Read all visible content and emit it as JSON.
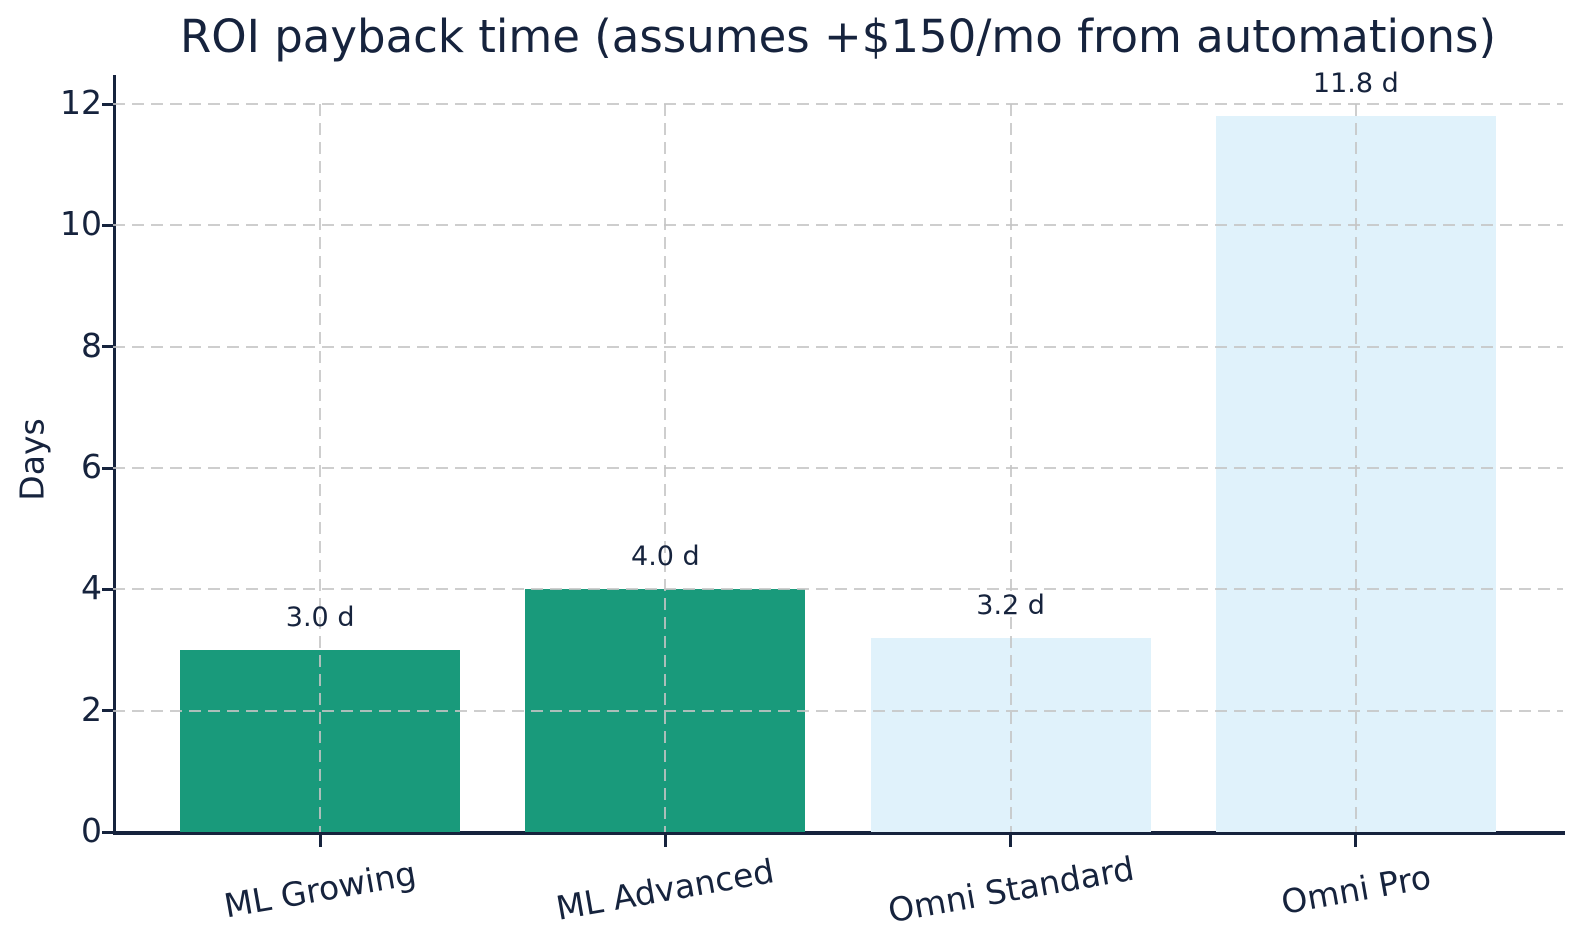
{
  "chart_data": {
    "type": "bar",
    "title": "ROI payback time (assumes +$150/mo from automations)",
    "xlabel": "",
    "ylabel": "Days",
    "categories": [
      "ML Growing",
      "ML Advanced",
      "Omni Standard",
      "Omni Pro"
    ],
    "values": [
      3.0,
      4.0,
      3.2,
      11.8
    ],
    "bar_labels": [
      "3.0 d",
      "4.0 d",
      "3.2 d",
      "11.8 d"
    ],
    "bar_colors": [
      "#199a7b",
      "#199a7b",
      "#e0f2fb",
      "#e0f2fb"
    ],
    "ylim": [
      0,
      12
    ],
    "yticks": [
      0,
      2,
      4,
      6,
      8,
      10,
      12
    ],
    "grid": true,
    "grid_style": "dashed",
    "legend": "none",
    "colors": {
      "bar_green": "#199a7b",
      "bar_light_blue": "#e0f2fb",
      "text_navy": "#16233d",
      "gridline_gray": "#c5c5c5"
    }
  }
}
